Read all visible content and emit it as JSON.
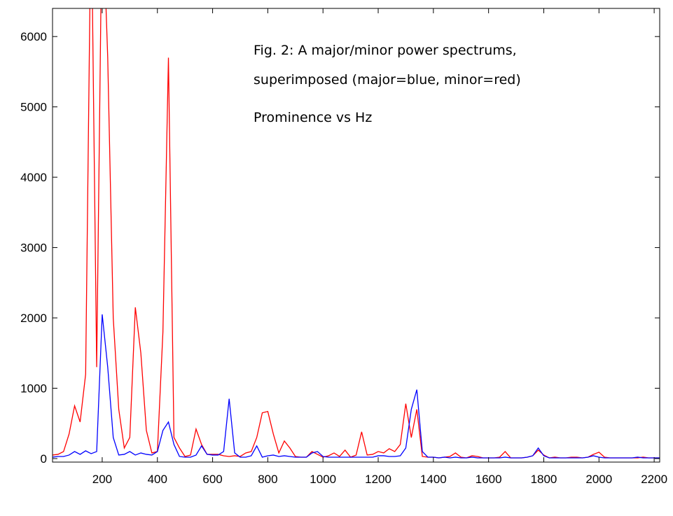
{
  "chart_data": {
    "type": "line",
    "annotations": [
      "Fig. 2: A major/minor power spectrums,",
      "superimposed (major=blue, minor=red)",
      "Prominence vs Hz"
    ],
    "x": [
      20,
      40,
      60,
      80,
      100,
      120,
      140,
      160,
      180,
      200,
      220,
      240,
      260,
      280,
      300,
      320,
      340,
      360,
      380,
      400,
      420,
      440,
      460,
      480,
      500,
      520,
      540,
      560,
      580,
      600,
      620,
      640,
      660,
      680,
      700,
      720,
      740,
      760,
      780,
      800,
      820,
      840,
      860,
      880,
      900,
      920,
      940,
      960,
      980,
      1000,
      1020,
      1040,
      1060,
      1080,
      1100,
      1120,
      1140,
      1160,
      1180,
      1200,
      1220,
      1240,
      1260,
      1280,
      1300,
      1320,
      1340,
      1360,
      1380,
      1400,
      1420,
      1440,
      1460,
      1480,
      1500,
      1520,
      1540,
      1560,
      1580,
      1600,
      1620,
      1640,
      1660,
      1680,
      1700,
      1720,
      1740,
      1760,
      1780,
      1800,
      1820,
      1840,
      1860,
      1880,
      1900,
      1920,
      1940,
      1960,
      1980,
      2000,
      2020,
      2040,
      2060,
      2080,
      2100,
      2120,
      2140,
      2160,
      2180,
      2200,
      2220
    ],
    "series": [
      {
        "color": "#ff0000",
        "values": [
          50,
          60,
          100,
          350,
          750,
          520,
          1200,
          8000,
          1300,
          8000,
          5700,
          2000,
          700,
          150,
          300,
          2150,
          1500,
          400,
          80,
          100,
          1800,
          5700,
          300,
          150,
          30,
          50,
          420,
          200,
          60,
          60,
          60,
          40,
          30,
          40,
          30,
          80,
          100,
          300,
          650,
          670,
          350,
          80,
          250,
          150,
          30,
          20,
          20,
          100,
          60,
          20,
          40,
          80,
          30,
          120,
          20,
          50,
          380,
          50,
          60,
          100,
          80,
          140,
          100,
          200,
          780,
          300,
          700,
          30,
          20,
          20,
          10,
          20,
          30,
          80,
          20,
          10,
          40,
          30,
          10,
          10,
          10,
          20,
          100,
          10,
          10,
          10,
          20,
          40,
          120,
          50,
          10,
          20,
          10,
          10,
          20,
          20,
          10,
          20,
          60,
          90,
          20,
          10,
          10,
          10,
          10,
          10,
          10,
          20,
          10,
          10,
          10
        ]
      },
      {
        "color": "#0000ff",
        "values": [
          20,
          30,
          30,
          50,
          100,
          60,
          110,
          70,
          100,
          2050,
          1300,
          300,
          50,
          60,
          100,
          50,
          80,
          60,
          50,
          100,
          400,
          520,
          200,
          30,
          20,
          20,
          50,
          180,
          60,
          50,
          50,
          100,
          850,
          80,
          20,
          20,
          40,
          180,
          20,
          40,
          50,
          30,
          40,
          30,
          20,
          20,
          20,
          80,
          100,
          30,
          20,
          20,
          20,
          20,
          20,
          20,
          20,
          20,
          20,
          40,
          40,
          30,
          30,
          40,
          150,
          700,
          980,
          100,
          20,
          20,
          10,
          20,
          10,
          20,
          10,
          10,
          20,
          10,
          10,
          10,
          10,
          10,
          20,
          10,
          10,
          10,
          20,
          40,
          150,
          40,
          10,
          10,
          10,
          10,
          10,
          10,
          10,
          20,
          40,
          20,
          10,
          10,
          10,
          10,
          10,
          10,
          20,
          10,
          10,
          10,
          10
        ]
      }
    ],
    "xlim": [
      20,
      2220
    ],
    "ylim": [
      -50,
      6400
    ],
    "xticks": [
      200,
      400,
      600,
      800,
      1000,
      1200,
      1400,
      1600,
      1800,
      2000,
      2200
    ],
    "yticks": [
      0,
      1000,
      2000,
      3000,
      4000,
      5000,
      6000
    ]
  }
}
